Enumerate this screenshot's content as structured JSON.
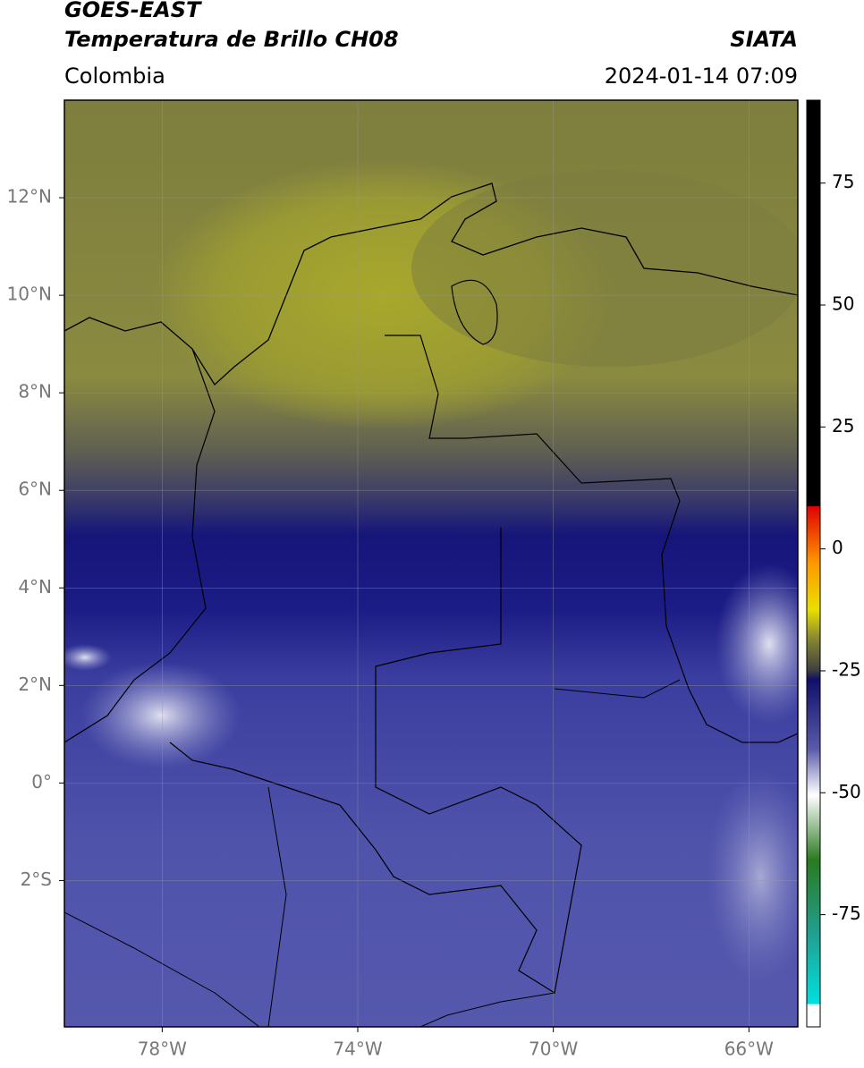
{
  "header": {
    "title": "GOES-EAST",
    "subtitle": "Temperatura de Brillo CH08",
    "region": "Colombia",
    "source": "SIATA",
    "datetime": "2024-01-14 07:09"
  },
  "map": {
    "xlim": [
      -80,
      -65
    ],
    "ylim": [
      -5,
      14
    ],
    "lon_ticks": [
      {
        "value": -78,
        "label": "78°W"
      },
      {
        "value": -74,
        "label": "74°W"
      },
      {
        "value": -70,
        "label": "70°W"
      },
      {
        "value": -66,
        "label": "66°W"
      }
    ],
    "lat_ticks": [
      {
        "value": 12,
        "label": "12°N"
      },
      {
        "value": 10,
        "label": "10°N"
      },
      {
        "value": 8,
        "label": "8°N"
      },
      {
        "value": 6,
        "label": "6°N"
      },
      {
        "value": 4,
        "label": "4°N"
      },
      {
        "value": 2,
        "label": "2°N"
      },
      {
        "value": 0,
        "label": "0°"
      },
      {
        "value": -2,
        "label": "2°S"
      }
    ]
  },
  "colorbar": {
    "lim": [
      -98,
      92
    ],
    "ticks": [
      75,
      50,
      25,
      0,
      -25,
      -50,
      -75
    ]
  }
}
